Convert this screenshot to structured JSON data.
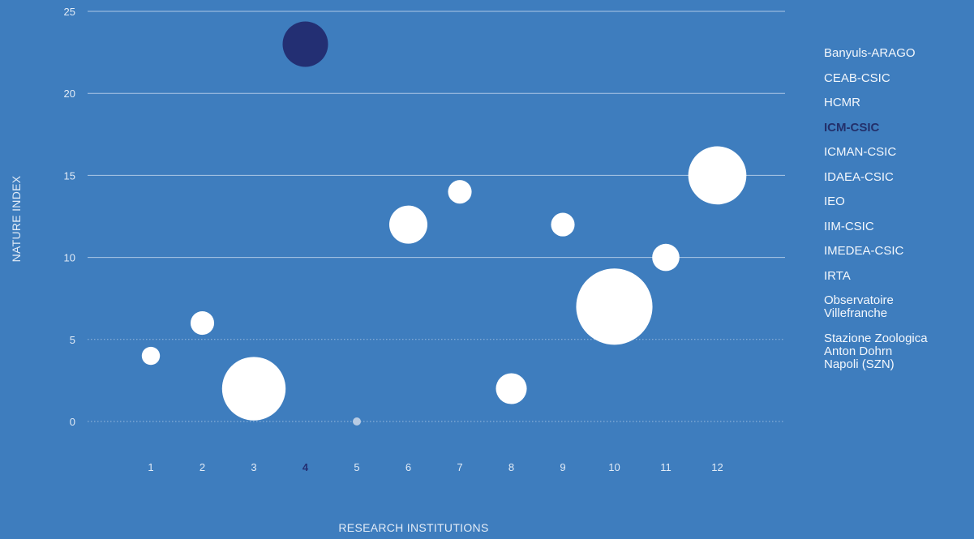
{
  "chart_data": {
    "type": "scatter",
    "subtype": "bubble",
    "xlabel": "RESEARCH INSTITUTIONS",
    "ylabel": "NATURE INDEX",
    "ylim": [
      0,
      25
    ],
    "yticks": [
      0,
      5,
      10,
      15,
      20,
      25
    ],
    "xticks": [
      "1",
      "2",
      "3",
      "4",
      "5",
      "6",
      "7",
      "8",
      "9",
      "10",
      "11",
      "12"
    ],
    "grid": true,
    "legend_placement": "right",
    "highlight_index": 4,
    "colors": {
      "background": "#3e7dbe",
      "bubble": "#ffffff",
      "highlight": "#232f73",
      "zero_bubble": "#b8cbe3",
      "grid": "#b9d0ea",
      "text": "#e3ecf7"
    },
    "points": [
      {
        "x": 1,
        "y": 4,
        "size": 1.0,
        "institution": "Banyuls-ARAGO"
      },
      {
        "x": 2,
        "y": 6,
        "size": 1.3,
        "institution": "CEAB-CSIC"
      },
      {
        "x": 3,
        "y": 2,
        "size": 3.5,
        "institution": "HCMR"
      },
      {
        "x": 4,
        "y": 23,
        "size": 2.5,
        "institution": "ICM-CSIC"
      },
      {
        "x": 5,
        "y": 0,
        "size": 0.2,
        "institution": "ICMAN-CSIC"
      },
      {
        "x": 6,
        "y": 12,
        "size": 2.1,
        "institution": "IDAEA-CSIC"
      },
      {
        "x": 7,
        "y": 14,
        "size": 1.3,
        "institution": "IEO"
      },
      {
        "x": 8,
        "y": 2,
        "size": 1.7,
        "institution": "IIM-CSIC"
      },
      {
        "x": 9,
        "y": 12,
        "size": 1.3,
        "institution": "IMEDEA-CSIC"
      },
      {
        "x": 10,
        "y": 7,
        "size": 4.2,
        "institution": "IRTA"
      },
      {
        "x": 11,
        "y": 10,
        "size": 1.5,
        "institution": "Observatoire Villefranche"
      },
      {
        "x": 12,
        "y": 15,
        "size": 3.2,
        "institution": "Stazione Zoologica Anton Dohrn Napoli (SZN)"
      }
    ]
  },
  "legend": [
    "Banyuls-ARAGO",
    "CEAB-CSIC",
    "HCMR",
    "ICM-CSIC",
    "ICMAN-CSIC",
    "IDAEA-CSIC",
    "IEO",
    "IIM-CSIC",
    "IMEDEA-CSIC",
    "IRTA",
    "Observatoire\nVillefranche",
    "Stazione Zoologica\nAnton Dohrn\nNapoli (SZN)"
  ]
}
